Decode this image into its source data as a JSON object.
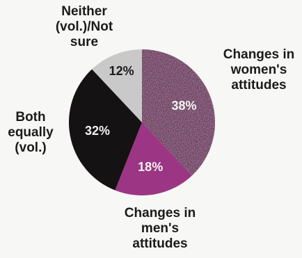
{
  "chart_data": {
    "type": "pie",
    "categories": [
      "Changes in women's attitudes",
      "Changes in men's attitudes",
      "Both equally (vol.)",
      "Neither (vol.)/Not sure"
    ],
    "values": [
      38,
      18,
      32,
      12
    ],
    "value_labels": [
      "38%",
      "18%",
      "32%",
      "12%"
    ],
    "colors": [
      "#6e2a5e",
      "#9c3583",
      "#151214",
      "#c9c9c9"
    ],
    "value_label_colors": [
      "#f2f2f2",
      "#f2f2f2",
      "#f2f2f2",
      "#1a1a1a"
    ],
    "start_angle_deg": 0,
    "direction": "clockwise"
  },
  "labels": {
    "neither": "Neither\n(vol.)/Not\nsure",
    "women": "Changes in\nwomen's\nattitudes",
    "both": "Both\nequally\n(vol.)",
    "men": "Changes in\nmen's\nattitudes"
  }
}
